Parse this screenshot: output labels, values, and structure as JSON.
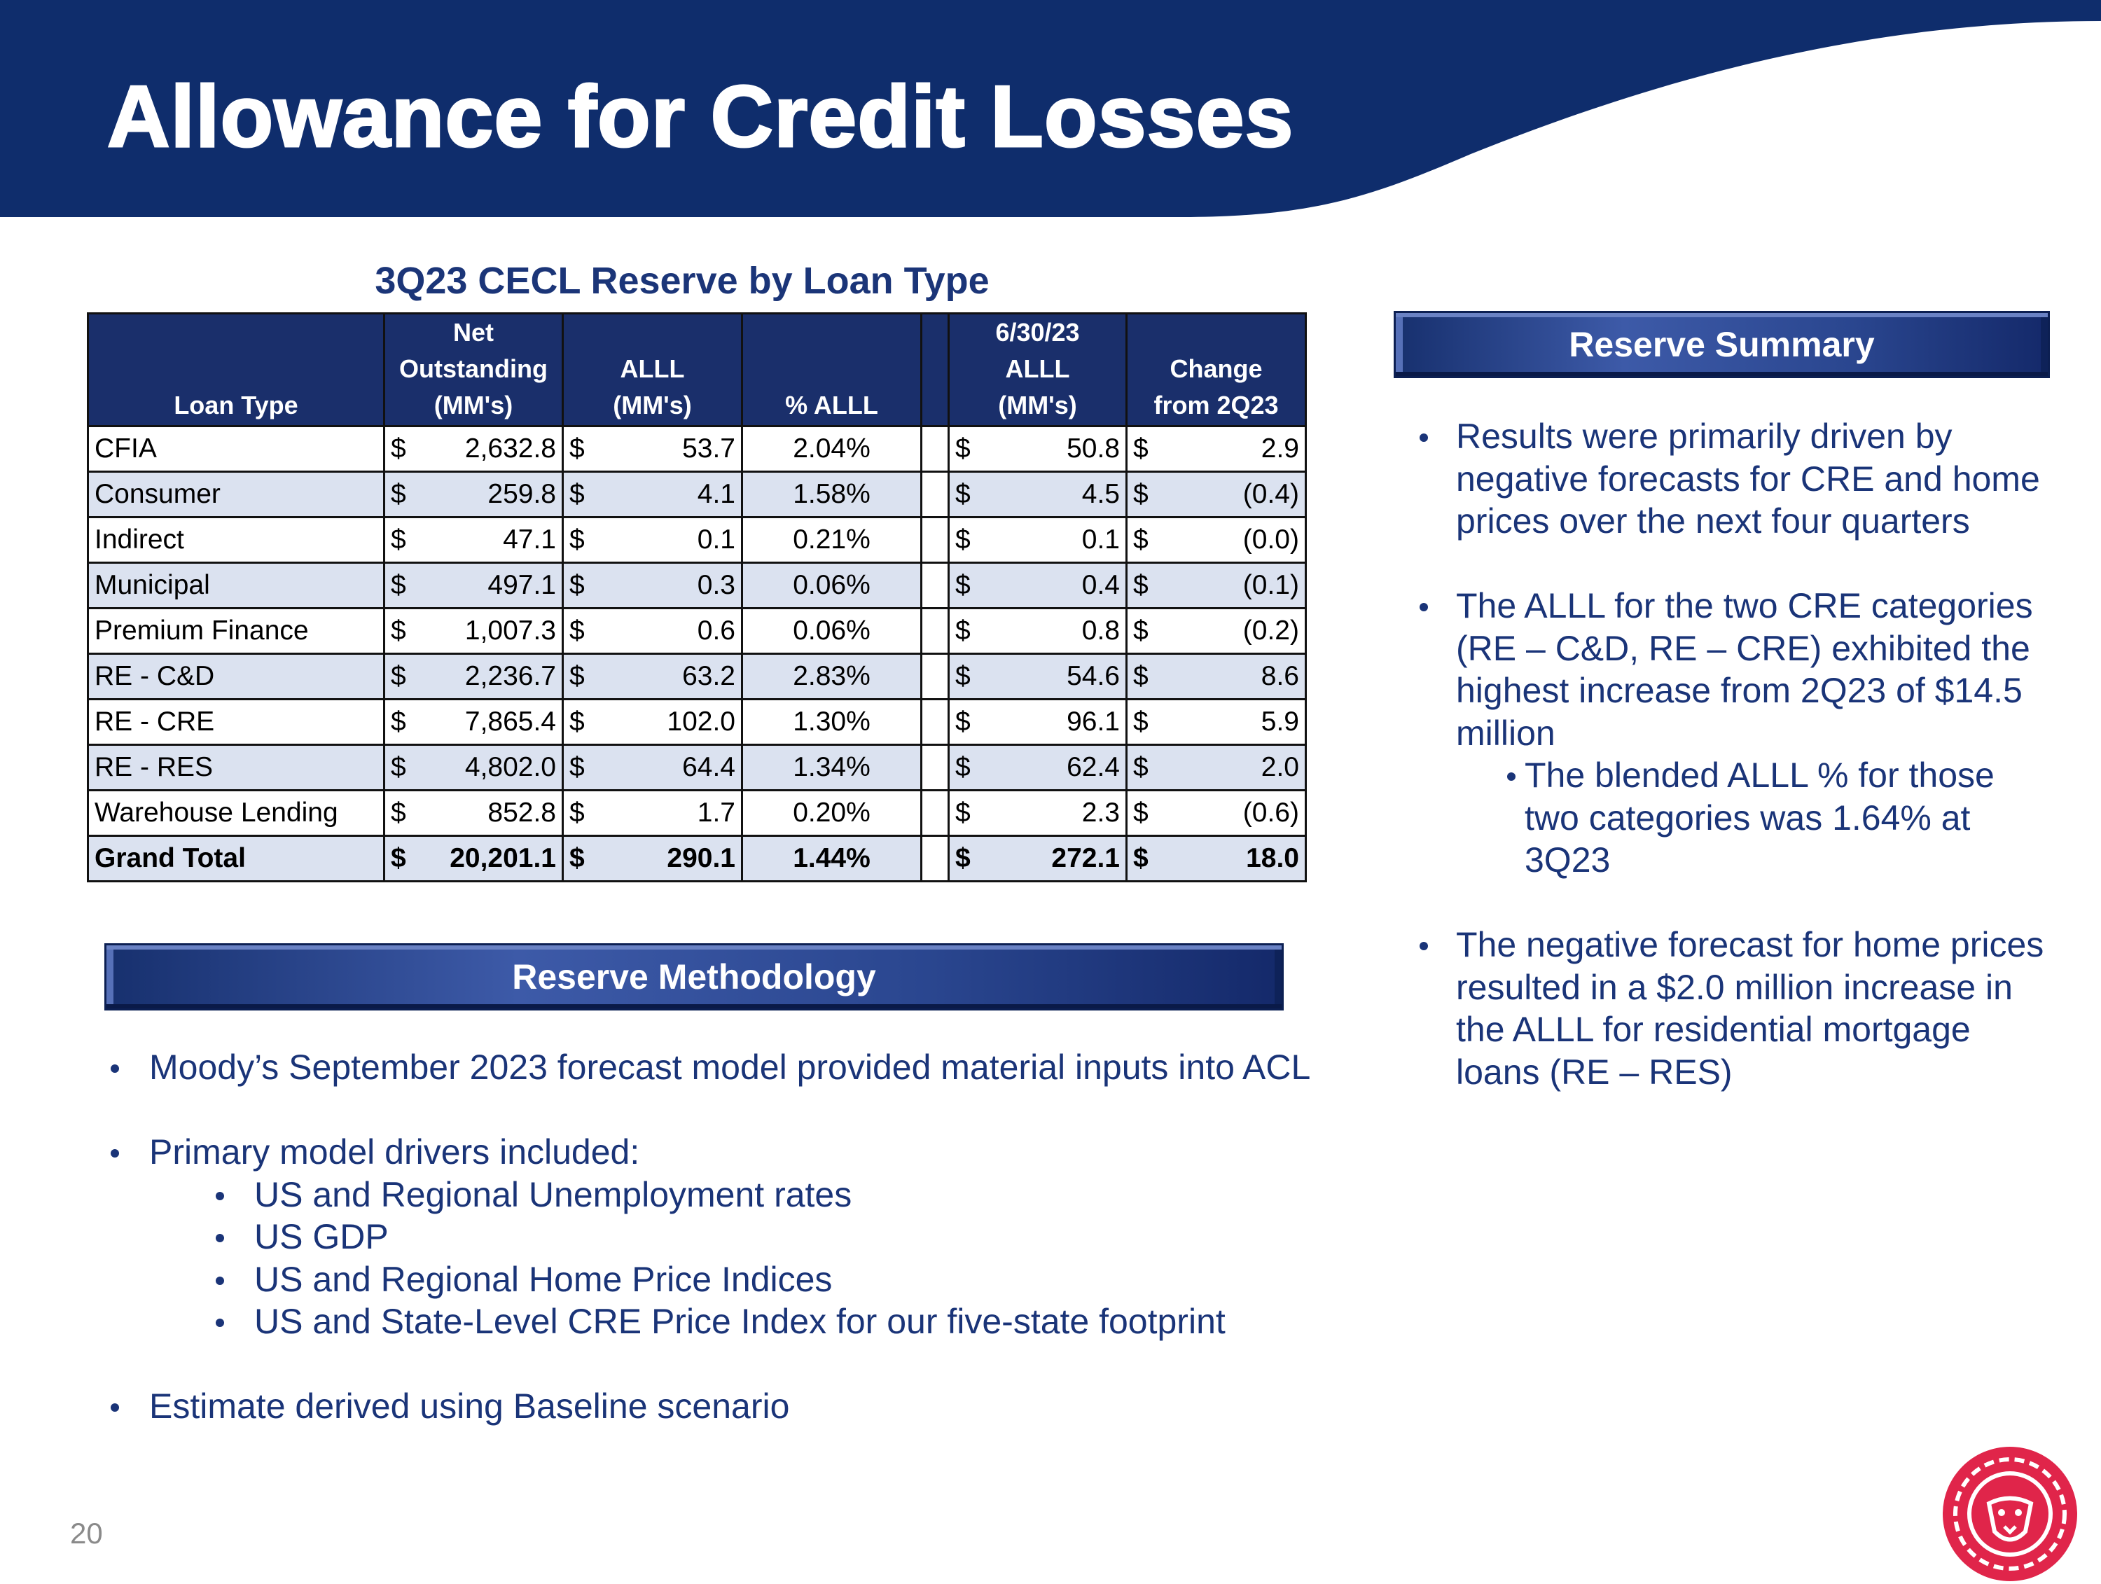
{
  "header": {
    "title": "Allowance for Credit Losses"
  },
  "table": {
    "title": "3Q23 CECL Reserve by Loan Type",
    "currency": "$",
    "columns": [
      [
        "Loan Type"
      ],
      [
        "Net",
        "Outstanding",
        "(MM's)"
      ],
      [
        "ALLL",
        "(MM's)"
      ],
      [
        "% ALLL"
      ],
      [
        "6/30/23",
        "ALLL",
        "(MM's)"
      ],
      [
        "Change",
        "from 2Q23"
      ]
    ],
    "rows": [
      [
        "CFIA",
        "2,632.8",
        "53.7",
        "2.04%",
        "50.8",
        "2.9"
      ],
      [
        "Consumer",
        "259.8",
        "4.1",
        "1.58%",
        "4.5",
        "(0.4)"
      ],
      [
        "Indirect",
        "47.1",
        "0.1",
        "0.21%",
        "0.1",
        "(0.0)"
      ],
      [
        "Municipal",
        "497.1",
        "0.3",
        "0.06%",
        "0.4",
        "(0.1)"
      ],
      [
        "Premium Finance",
        "1,007.3",
        "0.6",
        "0.06%",
        "0.8",
        "(0.2)"
      ],
      [
        "RE - C&D",
        "2,236.7",
        "63.2",
        "2.83%",
        "54.6",
        "8.6"
      ],
      [
        "RE - CRE",
        "7,865.4",
        "102.0",
        "1.30%",
        "96.1",
        "5.9"
      ],
      [
        "RE - RES",
        "4,802.0",
        "64.4",
        "1.34%",
        "62.4",
        "2.0"
      ],
      [
        "Warehouse Lending",
        "852.8",
        "1.7",
        "0.20%",
        "2.3",
        "(0.6)"
      ]
    ],
    "total": [
      "Grand Total",
      "20,201.1",
      "290.1",
      "1.44%",
      "272.1",
      "18.0"
    ]
  },
  "summary": {
    "heading": "Reserve Summary",
    "bullets": [
      {
        "text": "Results were primarily driven by negative forecasts for CRE and home prices over the next four quarters"
      },
      {
        "text": "The ALLL for the two CRE categories (RE – C&D, RE – CRE) exhibited the highest increase from 2Q23 of $14.5 million",
        "sub": [
          "The blended ALLL % for those two categories was 1.64% at 3Q23"
        ]
      },
      {
        "text": "The negative forecast for home prices resulted in a $2.0 million increase in the ALLL for residential mortgage loans (RE – RES)"
      }
    ]
  },
  "methodology": {
    "heading": "Reserve Methodology",
    "bullets": [
      {
        "text": "Moody’s September 2023 forecast model provided material inputs into ACL"
      },
      {
        "text": "Primary model drivers included:",
        "sub": [
          "US and Regional Unemployment rates",
          "US GDP",
          "US and Regional Home Price Indices",
          "US and State-Level CRE Price Index for our five-state footprint"
        ]
      },
      {
        "text": "Estimate derived using Baseline scenario"
      }
    ]
  },
  "page_number": "20"
}
